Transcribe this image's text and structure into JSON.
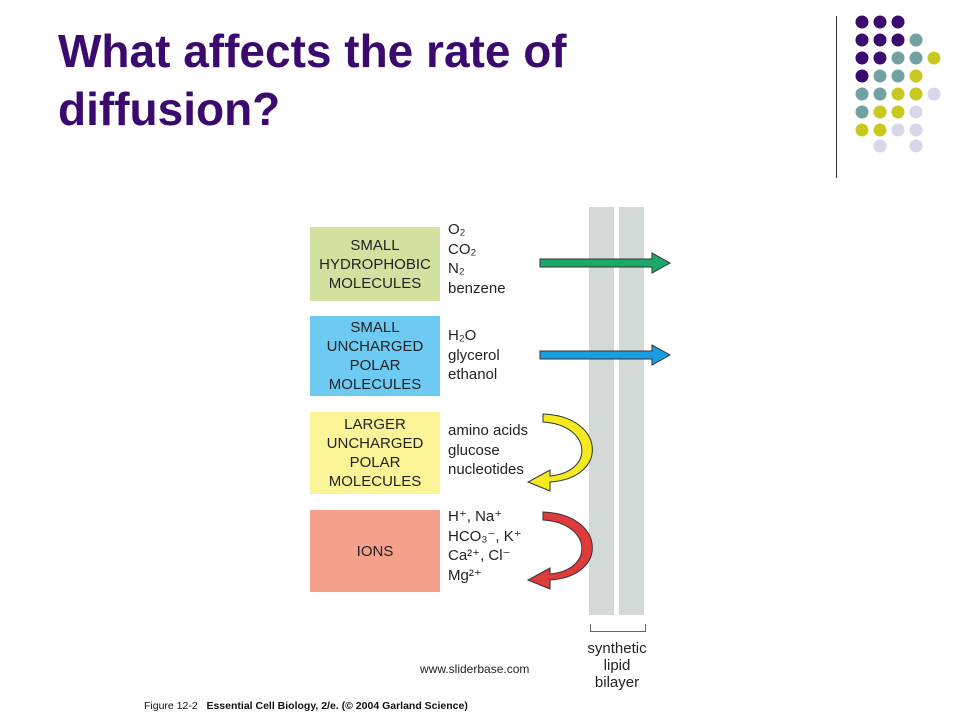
{
  "title_line1": "What affects the rate of",
  "title_line2": "diffusion?",
  "decoration": {
    "colors": {
      "purple": "#3b0a6e",
      "teal": "#73a0a0",
      "olive": "#c8c81e",
      "lavender": "#d9d6ec"
    }
  },
  "figure": {
    "groups": [
      {
        "category": "SMALL\nHYDROPHOBIC\nMOLECULES",
        "color": "#d3e1a0",
        "molecules": [
          "O₂",
          "CO₂",
          "N₂",
          "benzene"
        ],
        "arrow": "straight-through",
        "arrow_color": "#1aa96a"
      },
      {
        "category": "SMALL\nUNCHARGED\nPOLAR\nMOLECULES",
        "color": "#6dcbf3",
        "molecules": [
          "H₂O",
          "glycerol",
          "ethanol"
        ],
        "arrow": "straight-through",
        "arrow_color": "#1a9ee3"
      },
      {
        "category": "LARGER\nUNCHARGED\nPOLAR\nMOLECULES",
        "color": "#fbf497",
        "molecules": [
          "amino acids",
          "glucose",
          "nucleotides"
        ],
        "arrow": "curved-back",
        "arrow_color": "#f4ea1f"
      },
      {
        "category": "IONS",
        "color": "#f4a08a",
        "molecules": [
          "H⁺, Na⁺",
          "HCO₃⁻, K⁺",
          "Ca²⁺, Cl⁻",
          "Mg²⁺"
        ],
        "arrow": "curved-back",
        "arrow_color": "#e03a3c"
      }
    ],
    "bilayer_label": "synthetic\nlipid\nbilayer",
    "watermark": "www.sliderbase.com",
    "caption_figure": "Figure 12-2",
    "caption_source": "Essential Cell Biology, 2/e. (© 2004 Garland Science)"
  }
}
